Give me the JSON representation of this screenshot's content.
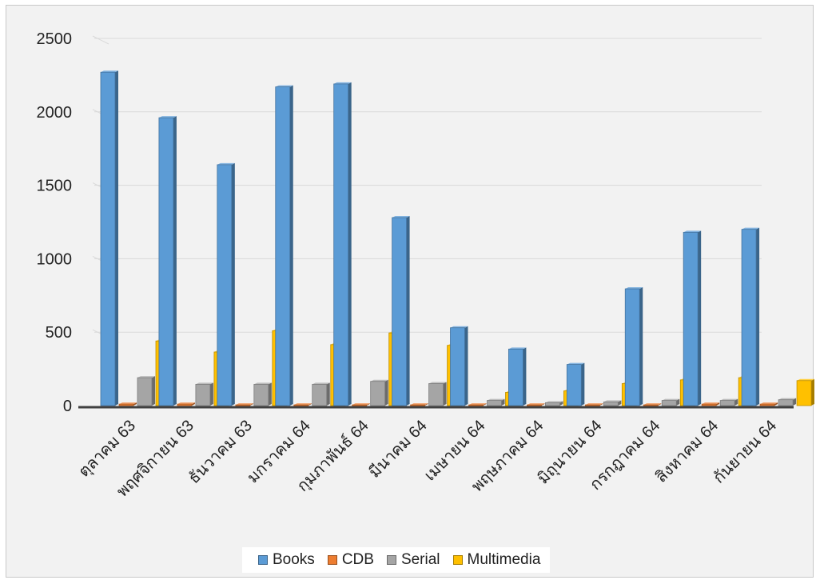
{
  "chart_data": {
    "type": "bar",
    "style": "3d-clustered-column",
    "categories": [
      "ตุลาคม 63",
      "พฤศจิกายน 63",
      "ธันวาคม 63",
      "มกราคม 64",
      "กุมภาพันธ์ 64",
      "มีนาคม 64",
      "เมษายน 64",
      "พฤษภาคม 64",
      "มิถุนายน 64",
      "กรกฎาคม 64",
      "สิงหาคม 64",
      "กันยายน 64"
    ],
    "series": [
      {
        "name": "Books",
        "color": "#5b9bd5",
        "values": [
          2270,
          1960,
          1640,
          2170,
          2190,
          1280,
          530,
          385,
          280,
          795,
          1180,
          1200
        ]
      },
      {
        "name": "CDB",
        "color": "#ed7d31",
        "values": [
          10,
          10,
          5,
          5,
          5,
          5,
          5,
          5,
          5,
          5,
          10,
          10
        ]
      },
      {
        "name": "Serial",
        "color": "#a5a5a5",
        "values": [
          190,
          145,
          145,
          145,
          165,
          150,
          35,
          20,
          25,
          35,
          35,
          40
        ]
      },
      {
        "name": "Multimedia",
        "color": "#ffc000",
        "values": [
          440,
          365,
          510,
          415,
          495,
          410,
          90,
          100,
          150,
          175,
          190,
          170
        ]
      }
    ],
    "yticks": [
      0,
      500,
      1000,
      1500,
      2000,
      2500
    ],
    "ylim": [
      0,
      2500
    ],
    "grid": true,
    "legend_position": "bottom"
  }
}
